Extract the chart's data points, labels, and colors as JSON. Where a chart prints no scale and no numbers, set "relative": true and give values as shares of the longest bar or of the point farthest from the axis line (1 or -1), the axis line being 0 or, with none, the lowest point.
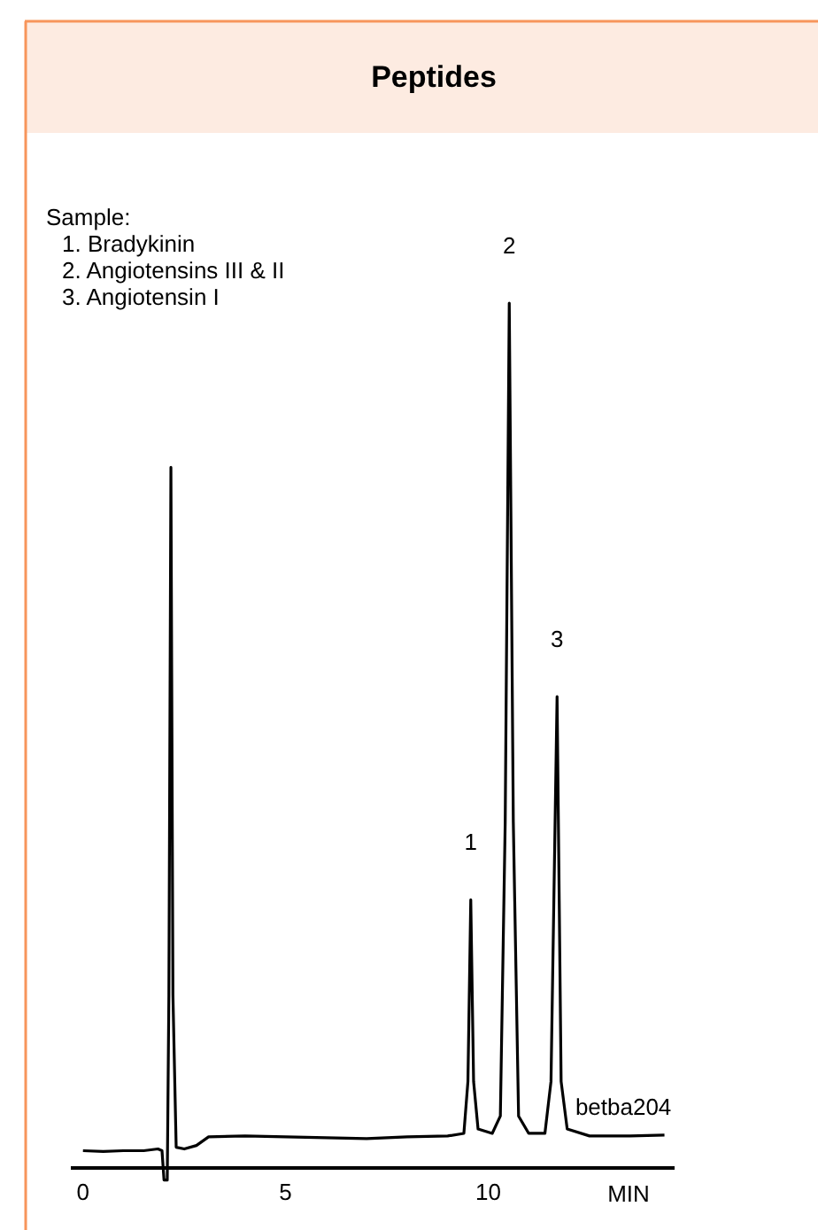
{
  "chart_data": {
    "type": "line",
    "title": "Peptides",
    "xlabel": "MIN",
    "relative": true,
    "xlim": [
      -0.3,
      14.6
    ],
    "xticks": [
      0,
      5,
      10
    ],
    "line_style": "solid",
    "series": [
      {
        "color": "#000000",
        "x": [
          0,
          0.5,
          1,
          1.5,
          1.85,
          1.95,
          2.0,
          2.08,
          2.12,
          2.17,
          2.22,
          2.3,
          2.5,
          2.8,
          3.1,
          4,
          5,
          6,
          7,
          8,
          9,
          9.4,
          9.5,
          9.57,
          9.64,
          9.75,
          10.1,
          10.3,
          10.42,
          10.52,
          10.62,
          10.75,
          11.0,
          11.4,
          11.55,
          11.7,
          11.8,
          11.95,
          12.5,
          13.5,
          14.35
        ],
        "values": [
          0.02,
          0.019,
          0.02,
          0.02,
          0.022,
          0.02,
          -0.014,
          -0.014,
          0.2,
          0.81,
          0.2,
          0.024,
          0.022,
          0.026,
          0.036,
          0.037,
          0.036,
          0.035,
          0.034,
          0.036,
          0.037,
          0.04,
          0.1,
          0.31,
          0.1,
          0.045,
          0.04,
          0.06,
          0.4,
          1,
          0.4,
          0.06,
          0.04,
          0.04,
          0.1,
          0.545,
          0.1,
          0.045,
          0.037,
          0.037,
          0.038
        ]
      }
    ],
    "annotations": [
      "Sample:\n1. Bradykinin\n2. Angiotensins III & II\n3. Angiotensin I",
      {
        "text": "1",
        "x": 9.57,
        "y": 0.31
      },
      {
        "text": "2",
        "x": 10.52,
        "y": 1
      },
      {
        "text": "3",
        "x": 11.7,
        "y": 0.545
      },
      {
        "text": "betba204",
        "x": 12.5,
        "y": 0.037
      }
    ]
  }
}
